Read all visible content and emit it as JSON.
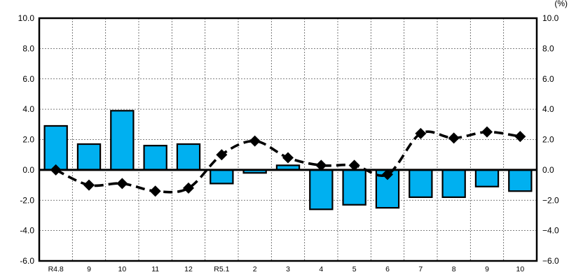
{
  "chart_data": {
    "type": "bar",
    "title": "",
    "unit_label": "(%)",
    "xlabel": "",
    "ylabel": "",
    "ylim": [
      -6.0,
      10.0
    ],
    "yticks": [
      "10.0",
      "8.0",
      "6.0",
      "4.0",
      "2.0",
      "0.0",
      "-2.0",
      "-4.0",
      "-6.0"
    ],
    "y2ticks": [
      "10.0",
      "8.0",
      "6.0",
      "4.0",
      "2.0",
      "0.0",
      "−2.0",
      "−4.0",
      "−6.0"
    ],
    "grid": true,
    "categories": [
      "R4.8",
      "9",
      "10",
      "11",
      "12",
      "R5.1",
      "2",
      "3",
      "4",
      "5",
      "6",
      "7",
      "8",
      "9",
      "10"
    ],
    "series": [
      {
        "kind": "bar",
        "color": "#00B0F0",
        "values": [
          2.9,
          1.7,
          3.9,
          1.6,
          1.7,
          -0.9,
          -0.2,
          0.3,
          -2.6,
          -2.3,
          -2.5,
          -1.8,
          -1.8,
          -1.1,
          -1.4
        ]
      },
      {
        "kind": "line",
        "style": "dashed",
        "marker": "diamond",
        "color": "#000000",
        "values": [
          0.0,
          -1.0,
          -0.9,
          -1.4,
          -1.2,
          1.0,
          1.9,
          0.8,
          0.3,
          0.3,
          -0.3,
          2.4,
          2.1,
          2.5,
          2.2
        ]
      }
    ]
  }
}
